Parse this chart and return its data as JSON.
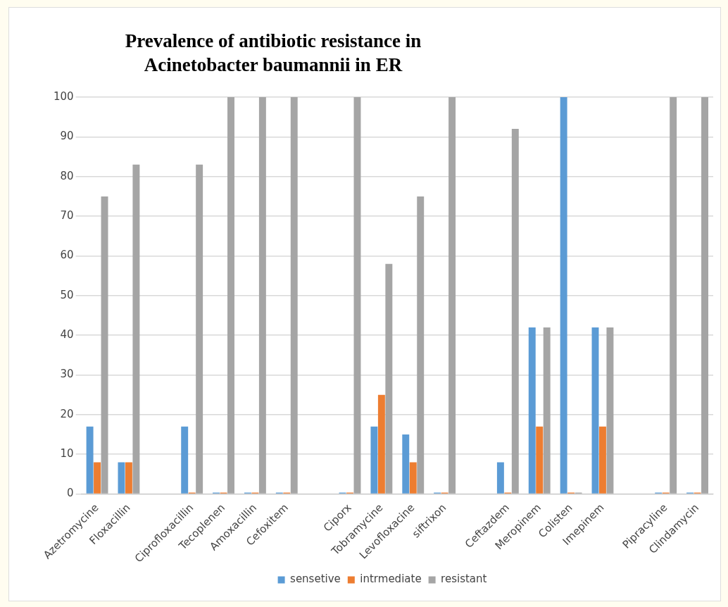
{
  "chart_data": {
    "type": "bar",
    "title": "Prevalence of antibiotic resistance in Acinetobacter baumannii in ER",
    "categories": [
      "Azetromycine",
      "Floxacillin",
      null,
      "Ciprofloxacillin",
      "Tecoplenen",
      "Amoxacillin",
      "Cefoxitem",
      null,
      "Ciporx",
      "Tobramycine",
      "Levofloxacine",
      "siftrixon",
      null,
      "Ceftazdem",
      "Meropinem",
      "Colisten",
      "Imepinem",
      null,
      "Pipracyline",
      "Clindamycin"
    ],
    "series": [
      {
        "name": "sensetive",
        "color": "#5b9bd5",
        "values": [
          17,
          8,
          null,
          17,
          0,
          0,
          0,
          null,
          0,
          17,
          15,
          0,
          null,
          8,
          42,
          100,
          42,
          null,
          0,
          0
        ]
      },
      {
        "name": "intrmediate",
        "color": "#ed7d31",
        "values": [
          8,
          8,
          null,
          0,
          0,
          0,
          0,
          null,
          0,
          25,
          8,
          0,
          null,
          0,
          17,
          0,
          17,
          null,
          0,
          0
        ]
      },
      {
        "name": "resistant",
        "color": "#a5a5a5",
        "values": [
          75,
          83,
          null,
          83,
          100,
          100,
          100,
          null,
          100,
          58,
          75,
          100,
          null,
          92,
          42,
          0,
          42,
          null,
          100,
          100
        ]
      }
    ],
    "ylim": [
      0,
      100
    ],
    "yticks": [
      0,
      10,
      20,
      30,
      40,
      50,
      60,
      70,
      80,
      90,
      100
    ],
    "grid": "y",
    "legend": "bottom"
  }
}
